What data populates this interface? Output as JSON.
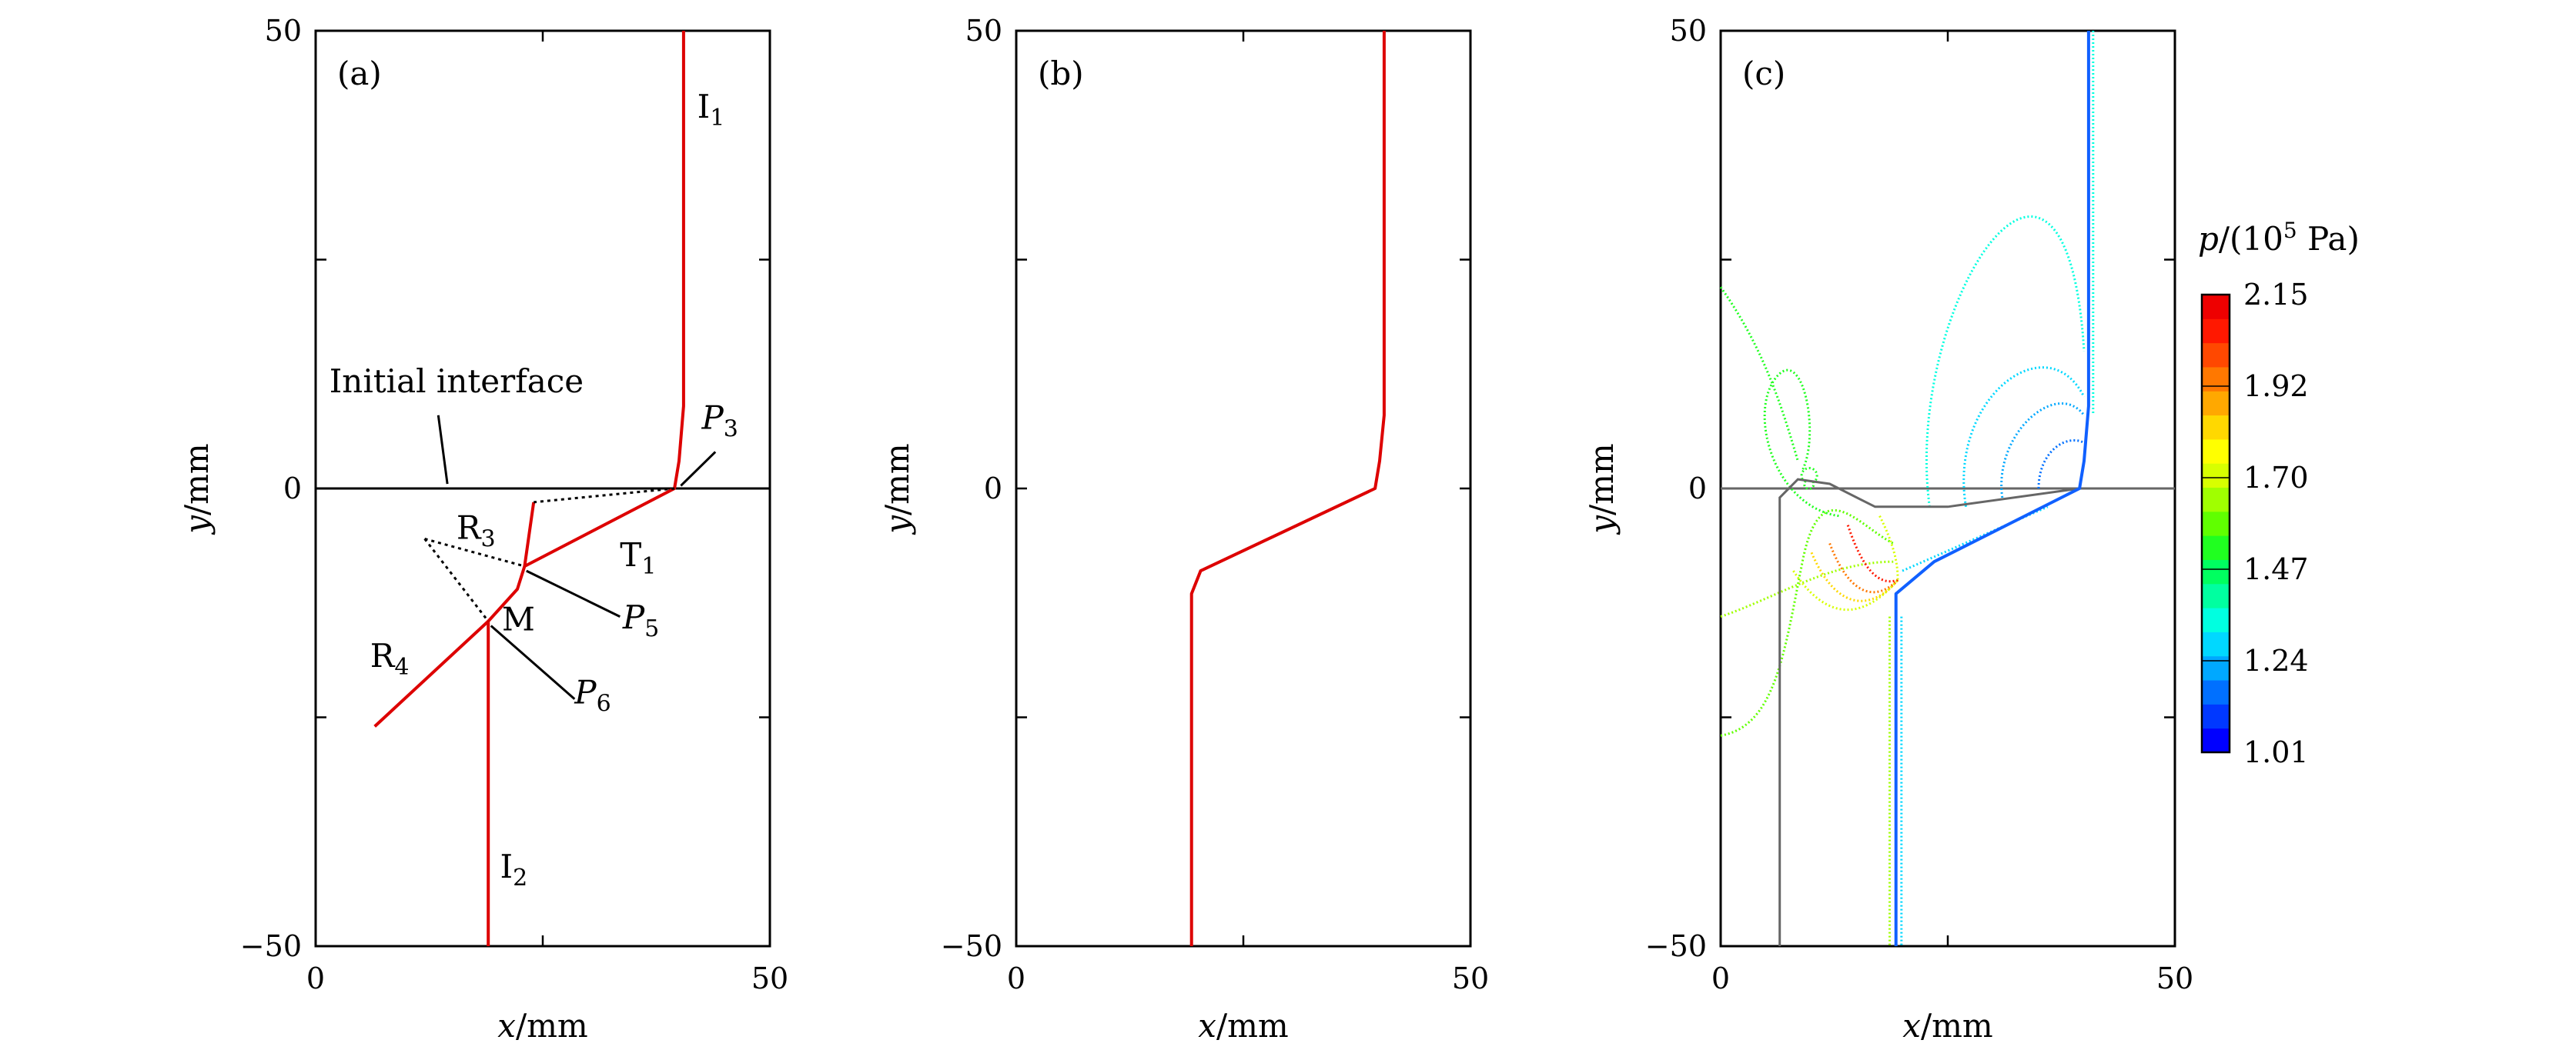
{
  "chart_data": [
    {
      "type": "line",
      "panel_label": "(a)",
      "xlabel": "x/mm",
      "ylabel": "y/mm",
      "xlim": [
        0,
        50
      ],
      "ylim": [
        -50,
        50
      ],
      "xticks": [
        "0",
        "50"
      ],
      "yticks": [
        "50",
        "0",
        "−50"
      ],
      "series": [
        {
          "values": [
            [
              40.5,
              50
            ],
            [
              40.5,
              9
            ],
            [
              40,
              3
            ],
            [
              39.5,
              0
            ],
            [
              23,
              -8.5
            ],
            [
              22.2,
              -11
            ],
            [
              19,
              -14.5
            ],
            [
              19,
              -50
            ]
          ]
        },
        {
          "values": [
            [
              23,
              -8.5
            ],
            [
              24,
              -1.5
            ]
          ]
        },
        {
          "values": [
            [
              19,
              -14.5
            ],
            [
              6.5,
              -26
            ]
          ]
        }
      ],
      "dotted_lines": [
        {
          "values": [
            [
              39.5,
              0
            ],
            [
              24,
              -1.5
            ]
          ]
        },
        {
          "values": [
            [
              12,
              -5.5
            ],
            [
              23,
              -8.5
            ]
          ]
        },
        {
          "values": [
            [
              12,
              -5.5
            ],
            [
              19,
              -14.5
            ]
          ]
        }
      ],
      "interface_line": {
        "y": 0
      },
      "annotations": [
        {
          "text": "Initial interface"
        },
        {
          "text": "I",
          "sub": "1"
        },
        {
          "text": "I",
          "sub": "2"
        },
        {
          "text": "T",
          "sub": "1"
        },
        {
          "text": "R",
          "sub": "3"
        },
        {
          "text": "R",
          "sub": "4"
        },
        {
          "text": "M"
        },
        {
          "text": "P",
          "sub": "3"
        },
        {
          "text": "P",
          "sub": "5"
        },
        {
          "text": "P",
          "sub": "6"
        }
      ]
    },
    {
      "type": "line",
      "panel_label": "(b)",
      "xlabel": "x/mm",
      "ylabel": "y/mm",
      "xlim": [
        0,
        50
      ],
      "ylim": [
        -50,
        50
      ],
      "xticks": [
        "0",
        "50"
      ],
      "yticks": [
        "50",
        "0",
        "−50"
      ],
      "series": [
        {
          "values": [
            [
              40.5,
              50
            ],
            [
              40.5,
              8
            ],
            [
              40,
              3
            ],
            [
              39.5,
              0
            ],
            [
              20.3,
              -9
            ],
            [
              19.3,
              -11.5
            ],
            [
              19.3,
              -50
            ]
          ]
        }
      ]
    },
    {
      "type": "line",
      "panel_label": "(c)",
      "xlabel": "x/mm",
      "ylabel": "y/mm",
      "xlim": [
        0,
        50
      ],
      "ylim": [
        -50,
        50
      ],
      "xticks": [
        "0",
        "50"
      ],
      "yticks": [
        "50",
        "0",
        "−50"
      ],
      "interface_line": {
        "y": 0
      },
      "colorbar": {
        "title": "p/(10",
        "title_sup": "5",
        "title_unit": " Pa)",
        "tick_labels": [
          "2.15",
          "1.92",
          "1.70",
          "1.47",
          "1.24",
          "1.01"
        ],
        "min": 1.01,
        "max": 2.15,
        "colors": [
          "#0000ff",
          "#0038ff",
          "#0070ff",
          "#00a8ff",
          "#00d8ff",
          "#00ffe0",
          "#00ffa0",
          "#00ff60",
          "#20ff20",
          "#60ff00",
          "#a0ff00",
          "#d8ff00",
          "#ffff00",
          "#ffd800",
          "#ffa800",
          "#ff7800",
          "#ff4800",
          "#ff1800",
          "#ee0000"
        ]
      },
      "series": [
        {
          "values": [
            [
              6.5,
              -50
            ],
            [
              6.5,
              -1
            ],
            [
              8.5,
              1
            ],
            [
              12,
              0.5
            ],
            [
              17,
              -2
            ],
            [
              25,
              -2
            ],
            [
              39.5,
              0
            ]
          ]
        },
        {
          "values": [
            [
              40.5,
              50
            ],
            [
              40.5,
              9
            ],
            [
              40,
              3
            ],
            [
              39.5,
              0
            ],
            [
              23.5,
              -8
            ],
            [
              19.3,
              -11.5
            ],
            [
              19.3,
              -50
            ]
          ]
        }
      ]
    }
  ]
}
